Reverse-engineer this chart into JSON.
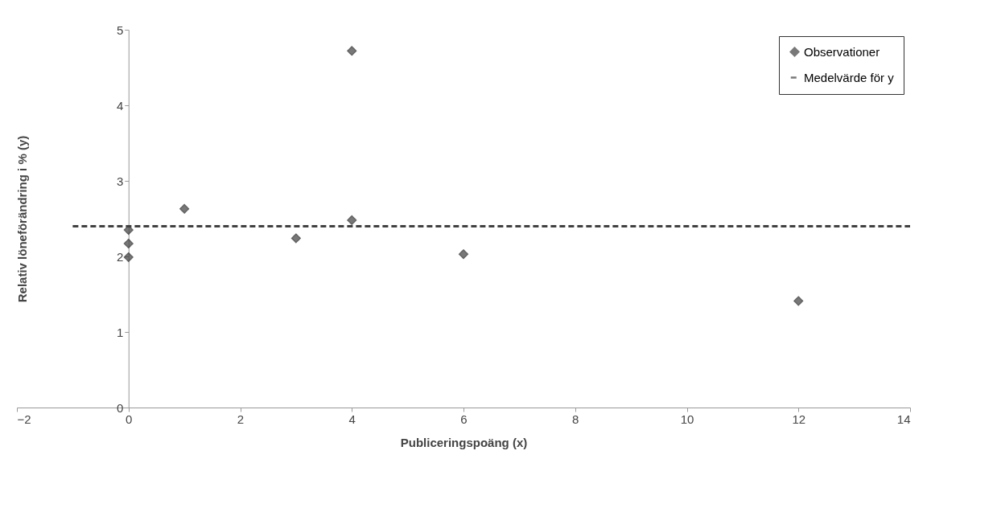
{
  "chart_data": {
    "type": "scatter",
    "xlabel": "Publiceringspoäng (x)",
    "ylabel": "Relativ löneförändring i % (y)",
    "xlim": [
      -2,
      14
    ],
    "xticks": [
      -2,
      0,
      2,
      4,
      6,
      8,
      10,
      12,
      14
    ],
    "ylim": [
      0,
      5
    ],
    "yticks": [
      0,
      1,
      2,
      3,
      4,
      5
    ],
    "grid": false,
    "legend": "top right",
    "series": [
      {
        "name": "Observationer",
        "color": "#404040",
        "marker": "diamond",
        "x": [
          0,
          0,
          0,
          1,
          3,
          4,
          4,
          6,
          12
        ],
        "values": [
          1.99,
          2.17,
          2.35,
          2.63,
          2.24,
          2.48,
          4.72,
          2.03,
          1.41
        ]
      },
      {
        "name": "Medelvärde för y",
        "type": "line",
        "line_style": "dashed",
        "color": "#404040",
        "x": [
          -1,
          14
        ],
        "values": [
          2.4,
          2.4
        ]
      }
    ]
  }
}
